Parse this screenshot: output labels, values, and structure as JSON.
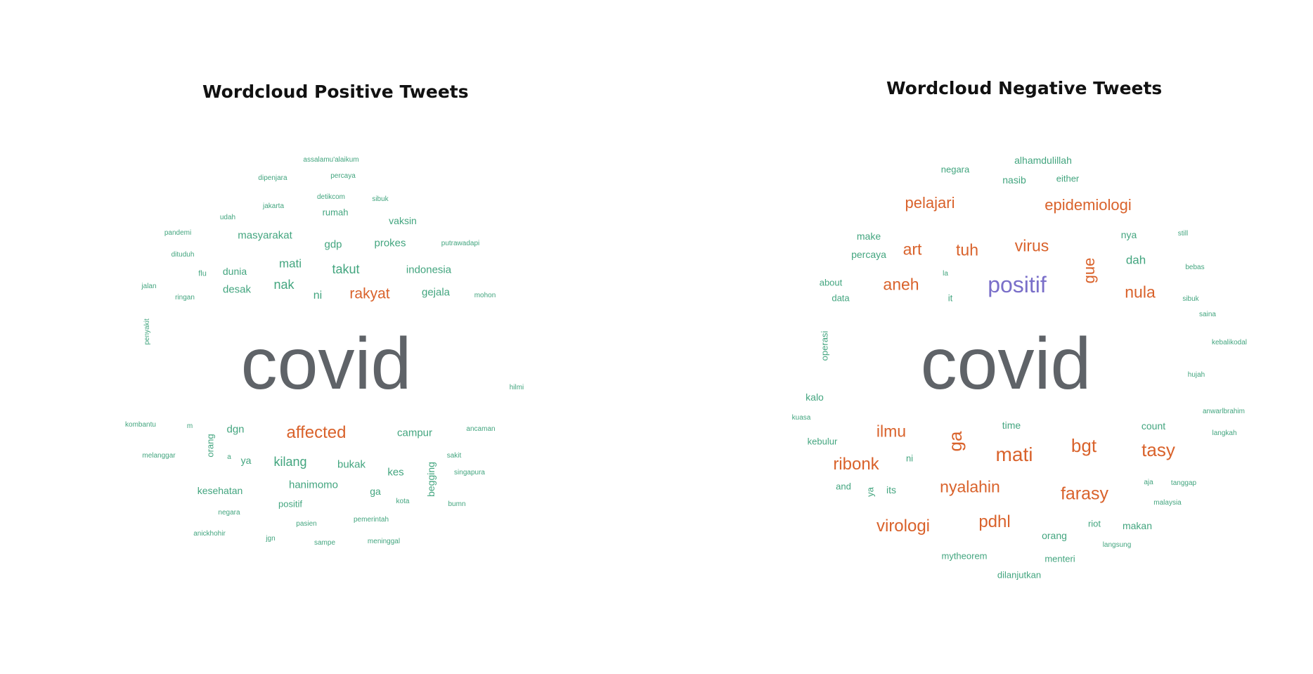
{
  "colors": {
    "dominant": "#5f6368",
    "orange": "#d9622b",
    "green": "#43a57f",
    "purple": "#7a6fc9"
  },
  "positive": {
    "title": "Wordcloud Positive Tweets",
    "words": {
      "w1": "assalamu'alaikum",
      "w2": "dipenjara",
      "w3": "percaya",
      "w4": "detikcom",
      "w5": "jakarta",
      "w6": "rumah",
      "w7": "sibuk",
      "w8": "udah",
      "w9": "vaksin",
      "w10": "pandemi",
      "w11": "masyarakat",
      "w12": "gdp",
      "w13": "prokes",
      "w14": "putrawadapi",
      "w15": "dituduh",
      "w16": "mati",
      "w17": "flu",
      "w18": "dunia",
      "w19": "takut",
      "w20": "indonesia",
      "w21": "jalan",
      "w22": "ringan",
      "w23": "desak",
      "w24": "nak",
      "w25": "ni",
      "w26": "rakyat",
      "w27": "gejala",
      "w28": "mohon",
      "w29": "penyakit",
      "w30": "covid",
      "w31": "hilmi",
      "w32": "kombantu",
      "w33": "m",
      "w34": "dgn",
      "w35": "affected",
      "w36": "campur",
      "w37": "ancaman",
      "w38": "orang",
      "w39": "melanggar",
      "w40": "a",
      "w41": "ya",
      "w42": "kilang",
      "w43": "bukak",
      "w44": "sakit",
      "w45": "kes",
      "w46": "begging",
      "w47": "singapura",
      "w48": "kesehatan",
      "w49": "hanimomo",
      "w50": "ga",
      "w51": "kota",
      "w52": "positif",
      "w53": "bumn",
      "w54": "negara",
      "w55": "pasien",
      "w56": "pemerintah",
      "w57": "anickhohir",
      "w58": "jgn",
      "w59": "sampe",
      "w60": "meninggal"
    }
  },
  "negative": {
    "title": "Wordcloud Negative Tweets",
    "words": {
      "w1": "alhamdulillah",
      "w2": "negara",
      "w3": "nasib",
      "w4": "either",
      "w5": "pelajari",
      "w6": "epidemiologi",
      "w7": "make",
      "w8": "nya",
      "w9": "still",
      "w10": "art",
      "w11": "tuh",
      "w12": "virus",
      "w13": "percaya",
      "w14": "gue",
      "w15": "dah",
      "w16": "bebas",
      "w17": "la",
      "w18": "about",
      "w19": "aneh",
      "w20": "positif",
      "w21": "nula",
      "w22": "data",
      "w23": "it",
      "w24": "sibuk",
      "w25": "saina",
      "w26": "operasi",
      "w27": "kebalikodal",
      "w28": "covid",
      "w29": "hujah",
      "w30": "kalo",
      "w31": "anwarlbrahim",
      "w32": "kuasa",
      "w33": "time",
      "w34": "count",
      "w35": "ilmu",
      "w36": "langkah",
      "w37": "kebulur",
      "w38": "ga",
      "w39": "bgt",
      "w40": "tasy",
      "w41": "ni",
      "w42": "mati",
      "w43": "ribonk",
      "w44": "and",
      "w45": "ya",
      "w46": "its",
      "w47": "nyalahin",
      "w48": "aja",
      "w49": "tanggap",
      "w50": "farasy",
      "w51": "malaysia",
      "w52": "riot",
      "w53": "pdhl",
      "w54": "virologi",
      "w55": "makan",
      "w56": "orang",
      "w57": "langsung",
      "w58": "mytheorem",
      "w59": "menteri",
      "w60": "dilanjutkan"
    }
  }
}
